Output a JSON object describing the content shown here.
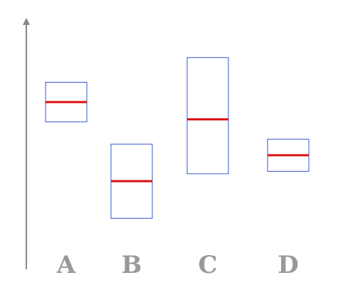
{
  "chart_data": {
    "type": "boxplot",
    "categories": [
      "A",
      "B",
      "C",
      "D"
    ],
    "boxes": [
      {
        "category": "A",
        "low": 58.5,
        "high": 74.5,
        "median": 66.5
      },
      {
        "category": "B",
        "low": 19.5,
        "high": 49.5,
        "median": 34.5
      },
      {
        "category": "C",
        "low": 37.5,
        "high": 84.5,
        "median": 59.5
      },
      {
        "category": "D",
        "low": 38.5,
        "high": 51.5,
        "median": 45
      }
    ],
    "ylim": [
      0,
      100
    ],
    "grid": false,
    "colors": {
      "box_outline": "#3355cc",
      "median": "#dd1111",
      "axis": "#888888",
      "labels": "#999999"
    }
  }
}
